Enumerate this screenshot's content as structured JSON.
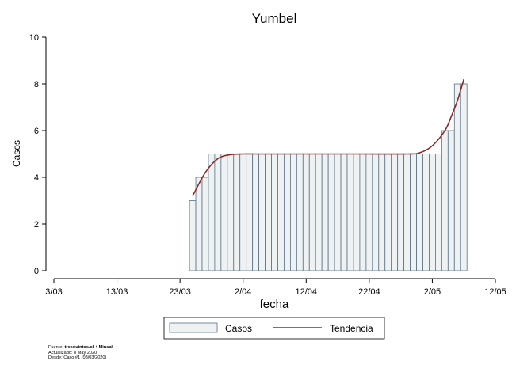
{
  "chart_data": {
    "type": "bar",
    "title": "Yumbel",
    "xlabel": "fecha",
    "ylabel": "Casos",
    "ylim": [
      0,
      10
    ],
    "yticks": [
      0,
      2,
      4,
      6,
      8,
      10
    ],
    "xlim": [
      "2020-03-03",
      "2020-05-12"
    ],
    "xticks": [
      {
        "date": "2020-03-03",
        "label": "3/03"
      },
      {
        "date": "2020-03-13",
        "label": "13/03"
      },
      {
        "date": "2020-03-23",
        "label": "23/03"
      },
      {
        "date": "2020-04-02",
        "label": "2/04"
      },
      {
        "date": "2020-04-12",
        "label": "12/04"
      },
      {
        "date": "2020-04-22",
        "label": "22/04"
      },
      {
        "date": "2020-05-02",
        "label": "2/05"
      },
      {
        "date": "2020-05-12",
        "label": "12/05"
      }
    ],
    "grid": false,
    "legend_position": "bottom",
    "series": [
      {
        "name": "Casos",
        "type": "bar",
        "color": "#eef2f3",
        "edge_color": "#5a7186",
        "x": [
          "2020-03-25",
          "2020-03-26",
          "2020-03-27",
          "2020-03-28",
          "2020-03-29",
          "2020-03-30",
          "2020-03-31",
          "2020-04-01",
          "2020-04-02",
          "2020-04-03",
          "2020-04-04",
          "2020-04-05",
          "2020-04-06",
          "2020-04-07",
          "2020-04-08",
          "2020-04-09",
          "2020-04-10",
          "2020-04-11",
          "2020-04-12",
          "2020-04-13",
          "2020-04-14",
          "2020-04-15",
          "2020-04-16",
          "2020-04-17",
          "2020-04-18",
          "2020-04-19",
          "2020-04-20",
          "2020-04-21",
          "2020-04-22",
          "2020-04-23",
          "2020-04-24",
          "2020-04-25",
          "2020-04-26",
          "2020-04-27",
          "2020-04-28",
          "2020-04-29",
          "2020-04-30",
          "2020-05-01",
          "2020-05-02",
          "2020-05-03",
          "2020-05-04",
          "2020-05-05",
          "2020-05-06",
          "2020-05-07"
        ],
        "values": [
          3,
          4,
          4,
          5,
          5,
          5,
          5,
          5,
          5,
          5,
          5,
          5,
          5,
          5,
          5,
          5,
          5,
          5,
          5,
          5,
          5,
          5,
          5,
          5,
          5,
          5,
          5,
          5,
          5,
          5,
          5,
          5,
          5,
          5,
          5,
          5,
          5,
          5,
          5,
          5,
          6,
          6,
          8,
          8
        ]
      },
      {
        "name": "Tendencia",
        "type": "line",
        "color": "#8b2a2a",
        "x": [
          "2020-03-25",
          "2020-03-27",
          "2020-03-29",
          "2020-03-31",
          "2020-04-02",
          "2020-04-04",
          "2020-04-10",
          "2020-04-20",
          "2020-04-28",
          "2020-04-30",
          "2020-05-02",
          "2020-05-04",
          "2020-05-05",
          "2020-05-06",
          "2020-05-07"
        ],
        "values": [
          3.2,
          4.2,
          4.8,
          4.97,
          5.0,
          5.0,
          5.0,
          5.0,
          5.0,
          5.05,
          5.35,
          6.0,
          6.6,
          7.3,
          8.2
        ]
      }
    ]
  },
  "source": {
    "line1_prefix": "Fuente: ",
    "line1_bold": "tresquintos.cl + Minsal",
    "line2": "Actualizado: 8 May 2020",
    "line3": "Desde: Caso #1  (03/03/2020)"
  }
}
